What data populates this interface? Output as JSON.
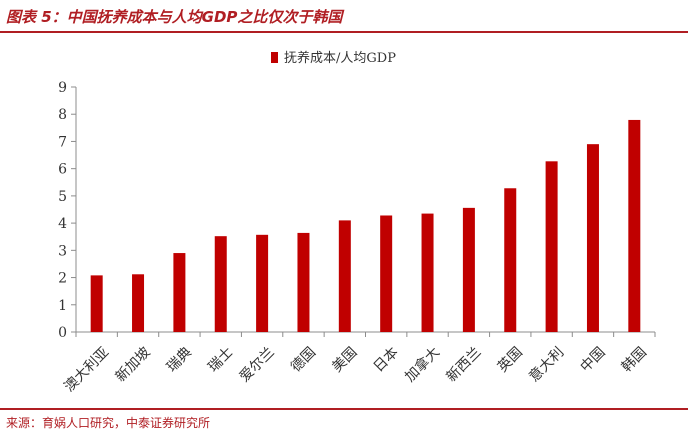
{
  "figure": {
    "title": "图表 5：中国抚养成本与人均GDP之比仅次于韩国",
    "source": "来源：育娲人口研究，中泰证券研究所"
  },
  "colors": {
    "accent": "#b01e23",
    "bar": "#c00000",
    "axis": "#8c8c8c"
  },
  "chart_data": {
    "type": "bar",
    "title": "",
    "xlabel": "",
    "ylabel": "",
    "categories": [
      "澳大利亚",
      "新加坡",
      "瑞典",
      "瑞士",
      "爱尔兰",
      "德国",
      "美国",
      "日本",
      "加拿大",
      "新西兰",
      "英国",
      "意大利",
      "中国",
      "韩国"
    ],
    "series": [
      {
        "name": "抚养成本/人均GDP",
        "values": [
          2.08,
          2.12,
          2.9,
          3.52,
          3.57,
          3.64,
          4.1,
          4.28,
          4.35,
          4.56,
          5.28,
          6.27,
          6.9,
          7.79
        ]
      }
    ],
    "ylim": [
      0,
      9
    ],
    "yticks": [
      "0",
      "1",
      "2",
      "3",
      "4",
      "5",
      "6",
      "7",
      "8",
      "9"
    ],
    "grid": false,
    "legend_position": "top"
  }
}
